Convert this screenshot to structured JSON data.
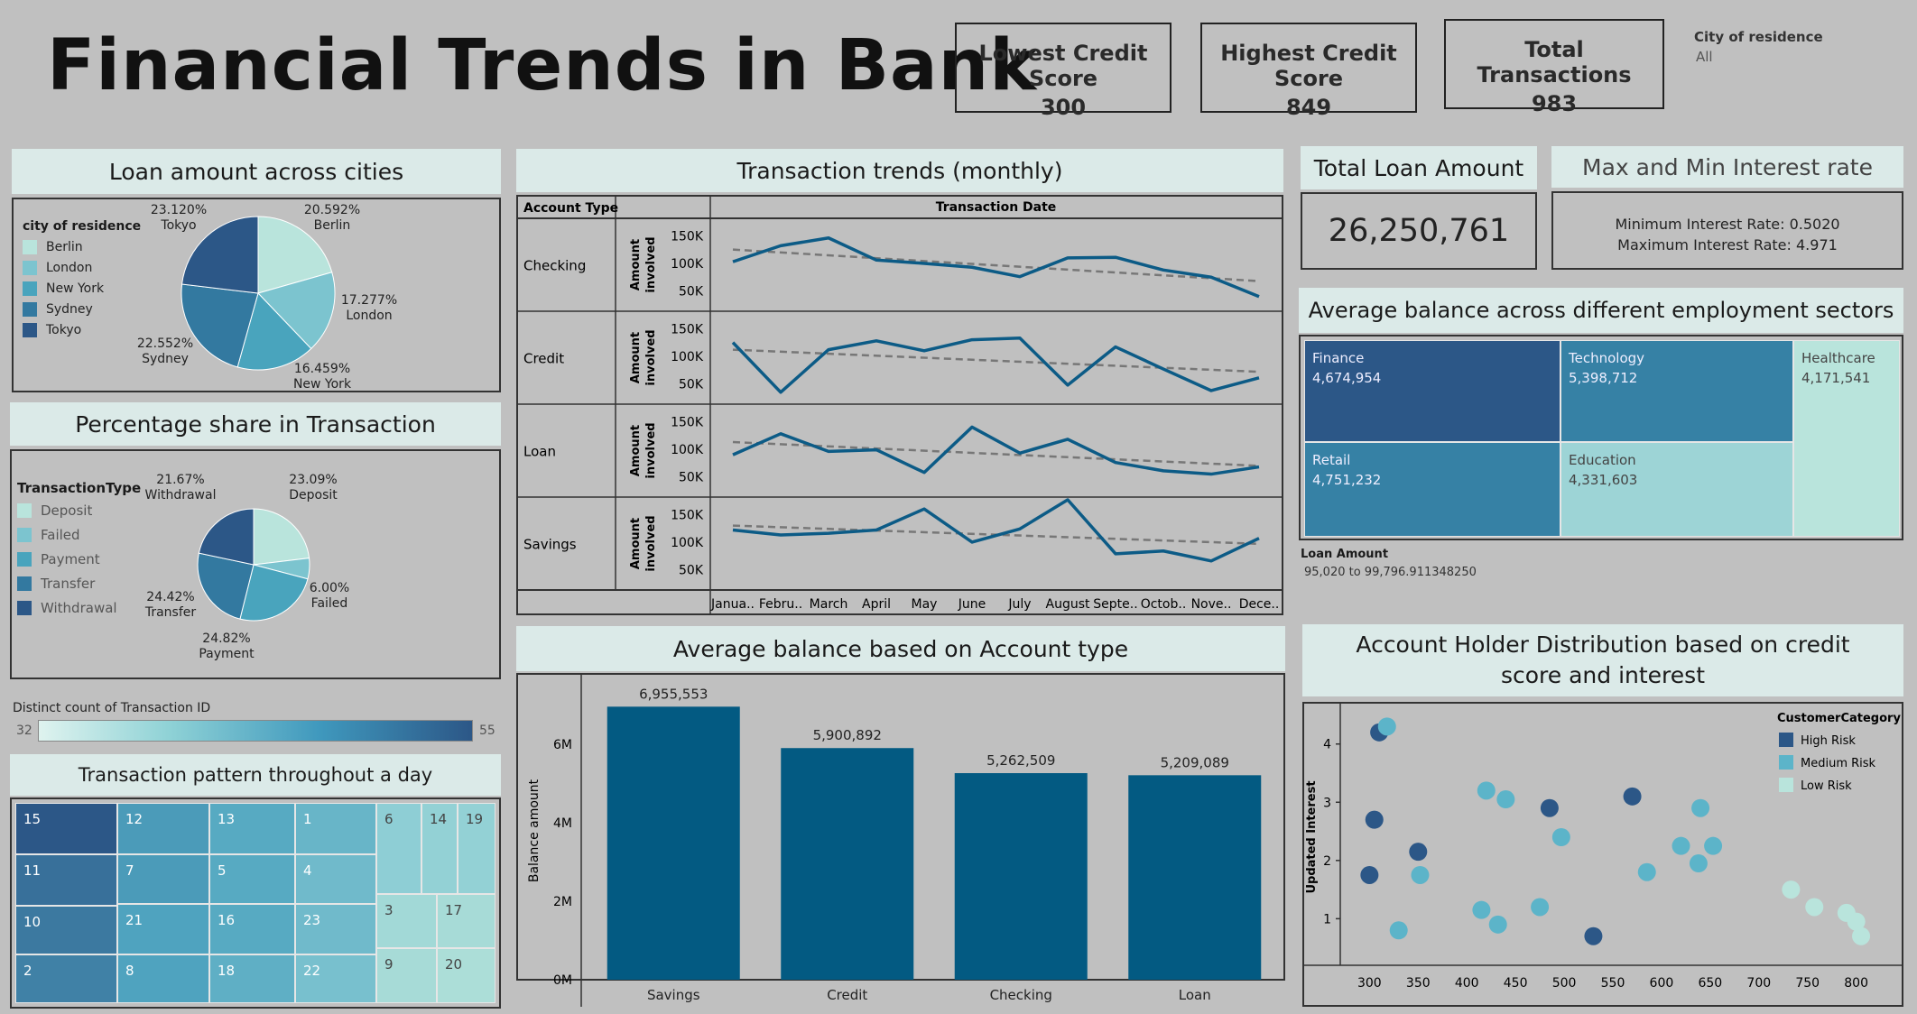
{
  "header": {
    "title": "Financial Trends in Bank",
    "kpis": [
      {
        "label": "Lowest Credit Score",
        "value": "300"
      },
      {
        "label": "Highest Credit Score",
        "value": "849"
      },
      {
        "label": "Total Transactions",
        "value": "983"
      }
    ],
    "filter": {
      "label": "City of residence",
      "value": "All"
    }
  },
  "loan_cities": {
    "title": "Loan amount across cities",
    "legend_title": "city of residence",
    "slices": [
      {
        "name": "Berlin",
        "pct": 20.592,
        "label": "20.592%",
        "color": "#b9e4dc"
      },
      {
        "name": "London",
        "pct": 17.277,
        "label": "17.277%",
        "color": "#7cc4cf"
      },
      {
        "name": "New York",
        "pct": 16.459,
        "label": "16.459%",
        "color": "#49a4bd"
      },
      {
        "name": "Sydney",
        "pct": 22.552,
        "label": "22.552%",
        "color": "#3379a0"
      },
      {
        "name": "Tokyo",
        "pct": 23.12,
        "label": "23.120%",
        "color": "#2c5787"
      }
    ]
  },
  "transaction_share": {
    "title": "Percentage share in Transaction",
    "legend_title": "TransactionType",
    "slices": [
      {
        "name": "Deposit",
        "pct": 23.09,
        "label": "23.09%",
        "color": "#b9e4dc"
      },
      {
        "name": "Failed",
        "pct": 6.0,
        "label": "6.00%",
        "color": "#7cc4cf"
      },
      {
        "name": "Payment",
        "pct": 24.82,
        "label": "24.82%",
        "color": "#49a4bd"
      },
      {
        "name": "Transfer",
        "pct": 24.42,
        "label": "24.42%",
        "color": "#3379a0"
      },
      {
        "name": "Withdrawal",
        "pct": 21.67,
        "label": "21.67%",
        "color": "#2c5787"
      }
    ]
  },
  "distinct_count": {
    "label": "Distinct count of Transaction ID",
    "min": "32",
    "max": "55"
  },
  "day_pattern": {
    "title": "Transaction pattern throughout a day",
    "cells": [
      {
        "label": "15",
        "count": 55
      },
      {
        "label": "12",
        "count": 47
      },
      {
        "label": "13",
        "count": 45
      },
      {
        "label": "1",
        "count": 43
      },
      {
        "label": "6",
        "count": 38
      },
      {
        "label": "14",
        "count": 37
      },
      {
        "label": "19",
        "count": 37
      },
      {
        "label": "11",
        "count": 52
      },
      {
        "label": "7",
        "count": 47
      },
      {
        "label": "5",
        "count": 45
      },
      {
        "label": "4",
        "count": 42
      },
      {
        "label": "10",
        "count": 51
      },
      {
        "label": "21",
        "count": 46
      },
      {
        "label": "16",
        "count": 45
      },
      {
        "label": "23",
        "count": 42
      },
      {
        "label": "3",
        "count": 34
      },
      {
        "label": "17",
        "count": 33
      },
      {
        "label": "2",
        "count": 50
      },
      {
        "label": "8",
        "count": 46
      },
      {
        "label": "18",
        "count": 44
      },
      {
        "label": "22",
        "count": 41
      },
      {
        "label": "9",
        "count": 33
      },
      {
        "label": "20",
        "count": 32
      }
    ]
  },
  "monthly_trends": {
    "title": "Transaction trends (monthly)",
    "row_header": "Account Type",
    "col_header": "Transaction Date",
    "axis_label": "Amount involved",
    "yticks": [
      "150K",
      "100K",
      "50K"
    ],
    "months": [
      "Janua..",
      "Febru..",
      "March",
      "April",
      "May",
      "June",
      "July",
      "August",
      "Septe..",
      "Octob..",
      "Nove..",
      "Dece.."
    ]
  },
  "account_balance": {
    "title": "Average balance based on Account type",
    "ylabel": "Balance amount",
    "yticks": [
      "6M",
      "4M",
      "2M",
      "0M"
    ]
  },
  "total_loan": {
    "title": "Total Loan Amount",
    "value": "26,250,761"
  },
  "interest": {
    "title": "Max and Min Interest rate",
    "min_line": "Minimum Interest Rate: 0.5020",
    "max_line": "Maximum Interest Rate: 4.971"
  },
  "employment": {
    "title": "Average balance across  different employment sectors",
    "sectors": [
      {
        "name": "Finance",
        "value": "4,674,954",
        "color": "#2c5787"
      },
      {
        "name": "Technology",
        "value": "5,398,712",
        "color": "#3681a5"
      },
      {
        "name": "Retail",
        "value": "4,751,232",
        "color": "#3681a5"
      },
      {
        "name": "Education",
        "value": "4,331,603",
        "color": "#9dd4d6"
      },
      {
        "name": "Healthcare",
        "value": "4,171,541",
        "color": "#b9e4dc"
      }
    ],
    "legend_label": "Loan Amount",
    "legend_range": "95,020 to 99,796.911348250"
  },
  "scatter": {
    "title": "Account Holder Distribution based on credit score and interest",
    "legend_title": "CustomerCategory",
    "ylabel": "Updated Interest"
  },
  "chart_data": [
    {
      "type": "line",
      "title": "Transaction trends (monthly)",
      "xlabel": "Transaction Date",
      "ylabel": "Amount involved",
      "categories": [
        "January",
        "February",
        "March",
        "April",
        "May",
        "June",
        "July",
        "August",
        "September",
        "October",
        "November",
        "December"
      ],
      "ylim": [
        20000,
        175000
      ],
      "series": [
        {
          "name": "Checking",
          "values": [
            103000,
            132000,
            146000,
            106000,
            100000,
            93000,
            76000,
            110000,
            111000,
            88000,
            75000,
            40000
          ]
        },
        {
          "name": "Credit",
          "values": [
            125000,
            35000,
            112000,
            128000,
            110000,
            130000,
            133000,
            48000,
            117000,
            77000,
            38000,
            61000
          ]
        },
        {
          "name": "Loan",
          "values": [
            90000,
            128000,
            96000,
            99000,
            58000,
            140000,
            93000,
            118000,
            76000,
            61000,
            55000,
            68000
          ]
        },
        {
          "name": "Savings",
          "values": [
            122000,
            113000,
            116000,
            122000,
            160000,
            100000,
            124000,
            179000,
            79000,
            84000,
            66000,
            107000
          ]
        }
      ],
      "trendlines": [
        {
          "name": "Checking",
          "start": 125000,
          "end": 68000
        },
        {
          "name": "Credit",
          "start": 112000,
          "end": 72000
        },
        {
          "name": "Loan",
          "start": 113000,
          "end": 70000
        },
        {
          "name": "Savings",
          "start": 130000,
          "end": 97000
        }
      ]
    },
    {
      "type": "bar",
      "title": "Average balance based on Account type",
      "categories": [
        "Savings",
        "Credit",
        "Checking",
        "Loan"
      ],
      "values": [
        6955553,
        5900892,
        5262509,
        5209089
      ],
      "labels": [
        "6,955,553",
        "5,900,892",
        "5,262,509",
        "5,209,089"
      ],
      "ylabel": "Balance amount",
      "ylim": [
        0,
        7400000
      ],
      "color": "#035a82"
    },
    {
      "type": "scatter",
      "title": "Account Holder Distribution based on credit score and interest",
      "ylabel": "Updated Interest",
      "xlim": [
        270,
        830
      ],
      "ylim": [
        0.2,
        4.6
      ],
      "xticks": [
        300,
        350,
        400,
        450,
        500,
        550,
        600,
        650,
        700,
        750,
        800
      ],
      "yticks": [
        1,
        2,
        3,
        4
      ],
      "series": [
        {
          "name": "High Risk",
          "color": "#2c5787",
          "points": [
            [
              310,
              4.2
            ],
            [
              305,
              2.7
            ],
            [
              300,
              1.75
            ],
            [
              350,
              2.15
            ],
            [
              485,
              2.9
            ],
            [
              570,
              3.1
            ],
            [
              530,
              0.7
            ]
          ]
        },
        {
          "name": "Medium Risk",
          "color": "#5cb4c9",
          "points": [
            [
              318,
              4.3
            ],
            [
              420,
              3.2
            ],
            [
              440,
              3.05
            ],
            [
              497,
              2.4
            ],
            [
              640,
              2.9
            ],
            [
              620,
              2.25
            ],
            [
              653,
              2.25
            ],
            [
              638,
              1.95
            ],
            [
              585,
              1.8
            ],
            [
              352,
              1.75
            ],
            [
              415,
              1.15
            ],
            [
              432,
              0.9
            ],
            [
              475,
              1.2
            ],
            [
              330,
              0.8
            ]
          ]
        },
        {
          "name": "Low Risk",
          "color": "#b9e4dc",
          "points": [
            [
              733,
              1.5
            ],
            [
              757,
              1.2
            ],
            [
              790,
              1.1
            ],
            [
              800,
              0.95
            ],
            [
              805,
              0.7
            ]
          ]
        }
      ]
    }
  ]
}
